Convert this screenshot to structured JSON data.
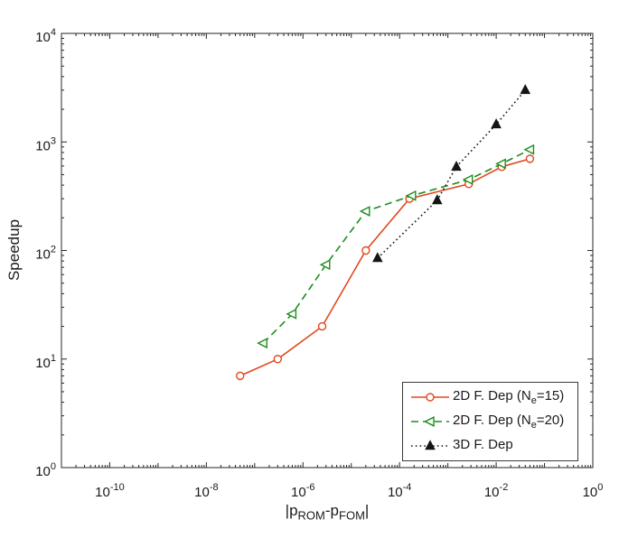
{
  "figure": {
    "background": "#ffffff",
    "axis_color": "#262626",
    "text_color": "#1a1a1a"
  },
  "chart_data": {
    "type": "line",
    "title": "",
    "xlabel": "|pROM-pFOM|",
    "xlabel_parts": {
      "p1": "|p",
      "sub1": "ROM",
      "p2": "-p",
      "sub2": "FOM",
      "p3": "|"
    },
    "ylabel": "Speedup",
    "xscale": "log",
    "yscale": "log",
    "xlim": [
      1e-11,
      1
    ],
    "ylim": [
      1,
      10000
    ],
    "x_tick_exponents": [
      -10,
      -8,
      -6,
      -4,
      -2,
      0
    ],
    "y_tick_exponents": [
      0,
      1,
      2,
      3,
      4
    ],
    "grid": false,
    "legend_position": "southeast",
    "series": [
      {
        "name": "2D F. Dep (Ne=15)",
        "label_parts": {
          "pre": "2D F. Dep (N",
          "sub": "e",
          "post": "=15)"
        },
        "color": "#e2481d",
        "line_style": "solid",
        "marker": "circle",
        "marker_fill": "#ffffff",
        "x": [
          5e-08,
          3e-07,
          2.5e-06,
          2e-05,
          0.00016,
          0.0027,
          0.013,
          0.05
        ],
        "y": [
          7,
          10,
          20,
          100,
          300,
          410,
          590,
          700
        ]
      },
      {
        "name": "2D F. Dep (Ne=20)",
        "label_parts": {
          "pre": "2D F. Dep (N",
          "sub": "e",
          "post": "=20)"
        },
        "color": "#1e8c1e",
        "line_style": "dashed",
        "marker": "triangle-left",
        "marker_fill": "#ffffff",
        "x": [
          1.5e-07,
          6e-07,
          3e-06,
          2e-05,
          0.00018,
          0.0027,
          0.013,
          0.05
        ],
        "y": [
          14,
          26,
          74,
          230,
          320,
          450,
          630,
          850
        ]
      },
      {
        "name": "3D F. Dep",
        "label_parts": {
          "pre": "3D F. Dep",
          "sub": "",
          "post": ""
        },
        "color": "#141414",
        "line_style": "dotted",
        "marker": "triangle-up",
        "marker_fill": "#141414",
        "x": [
          3.5e-05,
          0.0006,
          0.0015,
          0.01,
          0.04
        ],
        "y": [
          85,
          290,
          590,
          1450,
          3000
        ]
      }
    ]
  }
}
